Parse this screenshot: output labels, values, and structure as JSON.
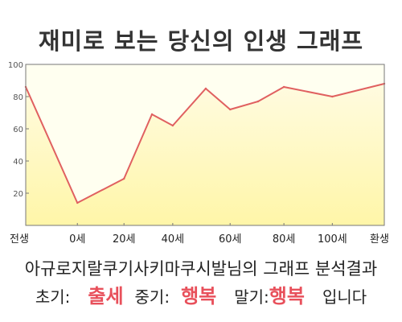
{
  "chart_data": {
    "type": "area",
    "title": "재미로 보는 당신의 인생 그래프",
    "categories": [
      "전생",
      "0세",
      "20세",
      "40세",
      "60세",
      "80세",
      "100세",
      "환생"
    ],
    "x_ticks": [
      "전생",
      "0세",
      "20세",
      "40세",
      "60세",
      "80세",
      "100세",
      "환생"
    ],
    "y_ticks": [
      20,
      40,
      60,
      80,
      100
    ],
    "ylim": [
      0,
      100
    ],
    "points": [
      {
        "x": "전생",
        "y": 86
      },
      {
        "x": "0세",
        "y": 14
      },
      {
        "x": "20세",
        "y": 29
      },
      {
        "x": "30세",
        "y": 69
      },
      {
        "x": "40세",
        "y": 62
      },
      {
        "x": "50세",
        "y": 85
      },
      {
        "x": "60세",
        "y": 72
      },
      {
        "x": "70세",
        "y": 77
      },
      {
        "x": "80세",
        "y": 86
      },
      {
        "x": "100세",
        "y": 80
      },
      {
        "x": "환생",
        "y": 88
      }
    ],
    "grid": false,
    "line_color": "#e06060",
    "fill_color": "#ffffc8",
    "plot_bg": "#fffff0"
  },
  "analysis": {
    "text": "아규로지랄쿠기사키마쿠시발님의 그래프 분석결과"
  },
  "result": {
    "early_label": "초기:",
    "early_value": "출세",
    "mid_label": "중기:",
    "mid_value": "행복",
    "late_label": "말기:",
    "late_value": "행복",
    "suffix": "입니다"
  },
  "colors": {
    "highlight": "#e8505b"
  }
}
